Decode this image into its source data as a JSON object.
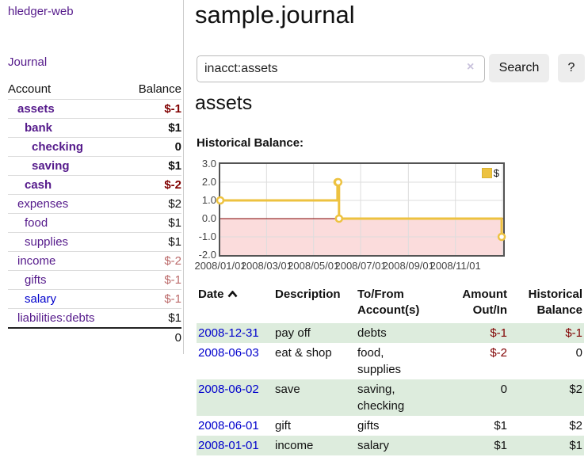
{
  "sidebar": {
    "brand": "hledger-web",
    "nav_journal": "Journal",
    "accounts": {
      "headers": {
        "account": "Account",
        "balance": "Balance"
      },
      "rows": [
        {
          "label": "assets",
          "indent": 1,
          "bold": true,
          "label_color": "purple",
          "balance": "$-1",
          "balance_style": "neg-bold"
        },
        {
          "label": "bank",
          "indent": 2,
          "bold": true,
          "label_color": "purple",
          "balance": "$1",
          "balance_style": "bold"
        },
        {
          "label": "checking",
          "indent": 3,
          "bold": true,
          "label_color": "purple",
          "balance": "0",
          "balance_style": "bold"
        },
        {
          "label": "saving",
          "indent": 3,
          "bold": true,
          "label_color": "purple",
          "balance": "$1",
          "balance_style": "bold"
        },
        {
          "label": "cash",
          "indent": 2,
          "bold": true,
          "label_color": "purple",
          "balance": "$-2",
          "balance_style": "neg-bold"
        },
        {
          "label": "expenses",
          "indent": 1,
          "bold": false,
          "label_color": "purple",
          "balance": "$2",
          "balance_style": "plain"
        },
        {
          "label": "food",
          "indent": 2,
          "bold": false,
          "label_color": "purple",
          "balance": "$1",
          "balance_style": "plain"
        },
        {
          "label": "supplies",
          "indent": 2,
          "bold": false,
          "label_color": "purple",
          "balance": "$1",
          "balance_style": "plain"
        },
        {
          "label": "income",
          "indent": 1,
          "bold": false,
          "label_color": "purple",
          "balance": "$-2",
          "balance_style": "neg-muted"
        },
        {
          "label": "gifts",
          "indent": 2,
          "bold": false,
          "label_color": "purple",
          "balance": "$-1",
          "balance_style": "neg-muted"
        },
        {
          "label": "salary",
          "indent": 2,
          "bold": false,
          "label_color": "blue",
          "balance": "$-1",
          "balance_style": "neg-muted"
        },
        {
          "label": "liabilities:debts",
          "indent": 1,
          "bold": false,
          "label_color": "purple",
          "balance": "$1",
          "balance_style": "plain"
        }
      ],
      "total": "0"
    }
  },
  "main": {
    "title": "sample.journal",
    "search": {
      "value": "inacct:assets",
      "clear_icon": "×",
      "button_label": "Search",
      "help_label": "?"
    },
    "account_heading": "assets",
    "section_label": "Historical Balance:"
  },
  "chart_data": {
    "type": "line",
    "title": "Historical Balance",
    "step": true,
    "series": [
      {
        "name": "$",
        "color": "#edc240",
        "points": [
          [
            "2008-01-01",
            1
          ],
          [
            "2008-06-01",
            2
          ],
          [
            "2008-06-02",
            2
          ],
          [
            "2008-06-03",
            0
          ],
          [
            "2008-12-31",
            -1
          ]
        ]
      }
    ],
    "xrange": [
      "2008-01-01",
      "2009-01-02"
    ],
    "ylim": [
      -2,
      3
    ],
    "yticks": [
      3,
      2,
      1,
      0,
      -1,
      -2
    ],
    "ytick_labels": [
      "3.0",
      "2.0",
      "1.0",
      "0.0",
      "-1.0",
      "-2.0"
    ],
    "xticks": [
      {
        "date": "2008-01-01",
        "label": "2008/01/01"
      },
      {
        "date": "2008-03-01",
        "label": "2008/03/01"
      },
      {
        "date": "2008-05-01",
        "label": "2008/05/01"
      },
      {
        "date": "2008-07-01",
        "label": "2008/07/01"
      },
      {
        "date": "2008-09-01",
        "label": "2008/09/01"
      },
      {
        "date": "2008-11-01",
        "label": "2008/11/01"
      },
      {
        "date": "2009-01-01",
        "label": ""
      }
    ],
    "legend": {
      "label": "$",
      "position": "top-right"
    },
    "grid": true,
    "colors": {
      "negative_region": "#fbdcdc",
      "zero_line": "#800000",
      "grid": "#dddddd",
      "border": "#545454",
      "marker_fill": "#ffffff"
    }
  },
  "register": {
    "headers": {
      "date": "Date",
      "description": "Description",
      "accounts": "To/From Account(s)",
      "amount": "Amount Out/In",
      "balance": "Historical Balance"
    },
    "sort": {
      "column": "date",
      "direction": "ascending"
    },
    "rows": [
      {
        "date": "2008-12-31",
        "description": "pay off",
        "accounts": "debts",
        "amount": "$-1",
        "balance": "$-1"
      },
      {
        "date": "2008-06-03",
        "description": "eat & shop",
        "accounts": "food, supplies",
        "amount": "$-2",
        "balance": "0"
      },
      {
        "date": "2008-06-02",
        "description": "save",
        "accounts": "saving, checking",
        "amount": "0",
        "balance": "$2"
      },
      {
        "date": "2008-06-01",
        "description": "gift",
        "accounts": "gifts",
        "amount": "$1",
        "balance": "$2"
      },
      {
        "date": "2008-01-01",
        "description": "income",
        "accounts": "salary",
        "amount": "$1",
        "balance": "$1"
      }
    ]
  }
}
